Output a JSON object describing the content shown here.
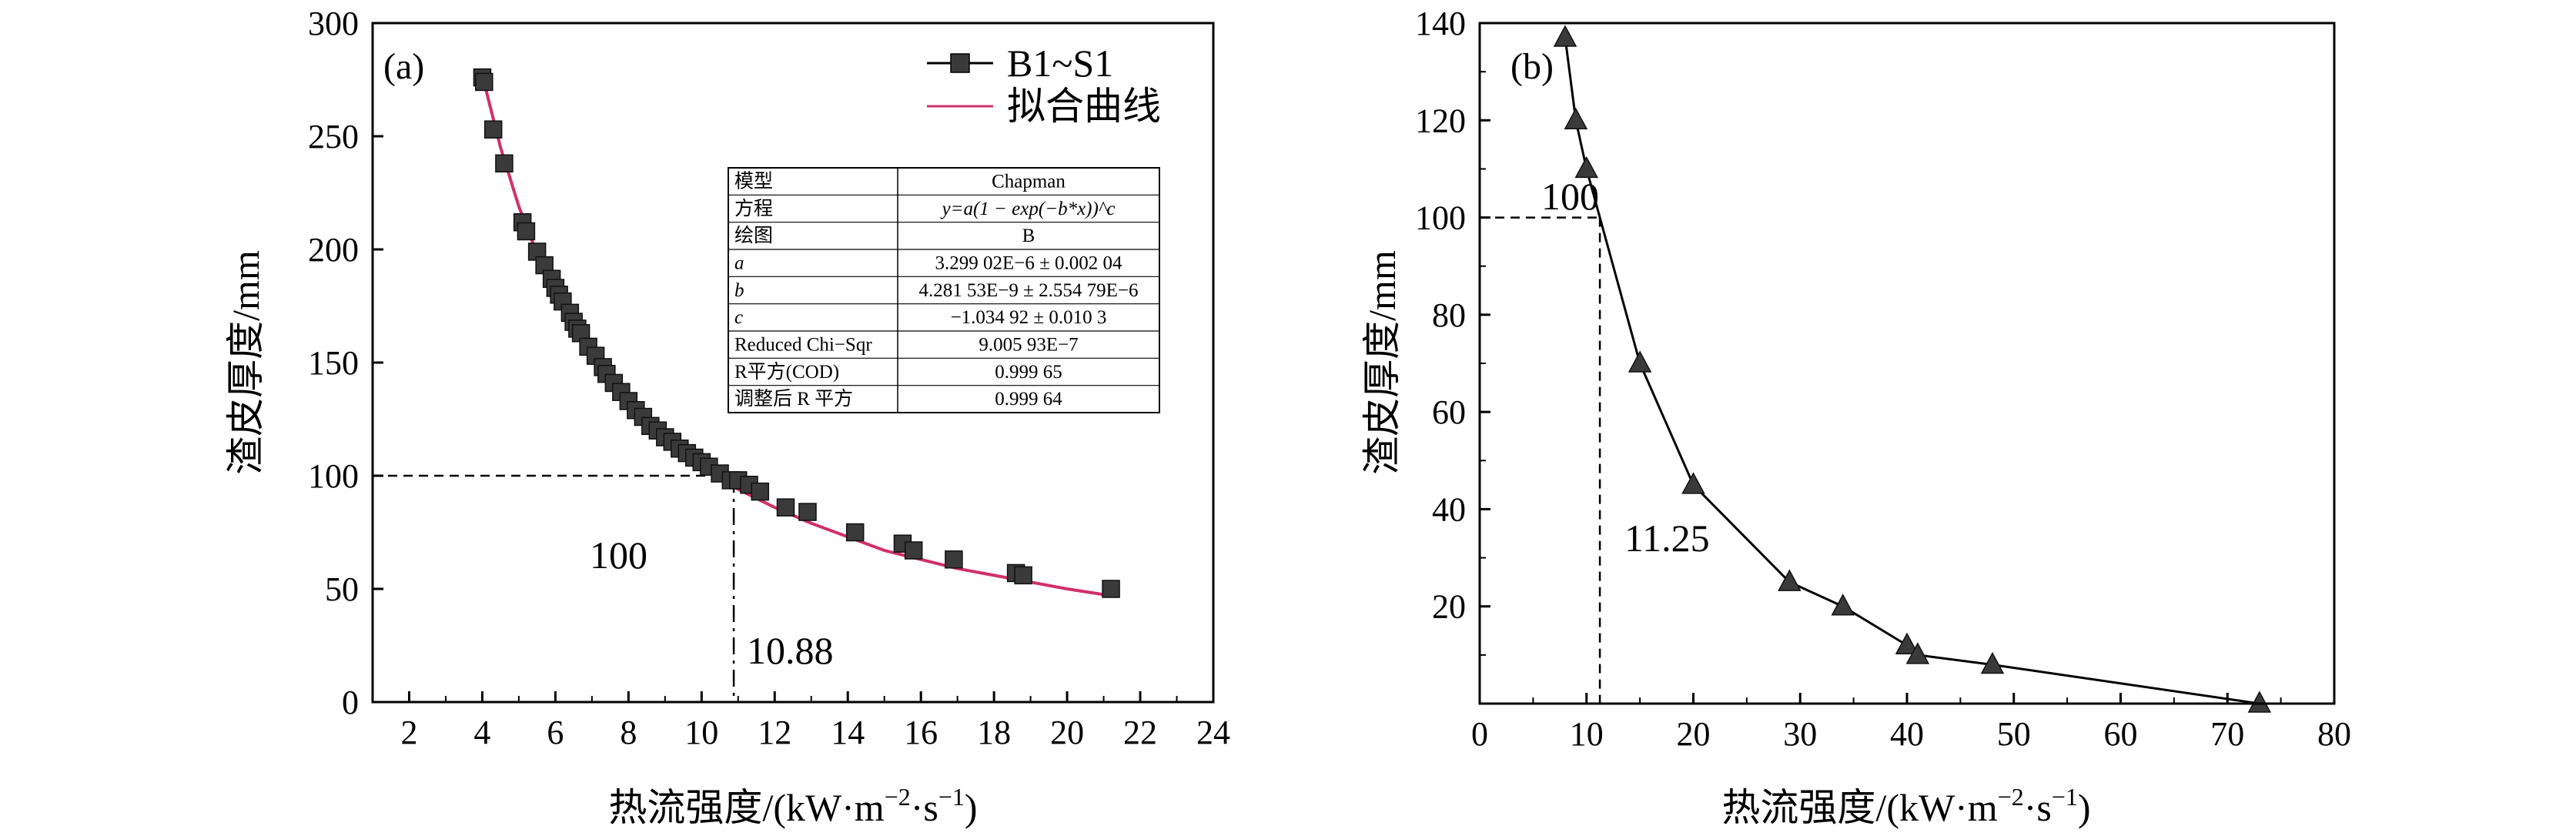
{
  "chart_data": [
    {
      "panel_label": "(a)",
      "type": "scatter",
      "xlabel": "热流强度/(kW·m⁻²·s⁻¹)",
      "ylabel": "渣皮厚度/mm",
      "xlim": [
        1,
        24
      ],
      "ylim": [
        0,
        300
      ],
      "xticks": [
        2,
        4,
        6,
        8,
        10,
        12,
        14,
        16,
        18,
        20,
        22,
        24
      ],
      "yticks": [
        0,
        50,
        100,
        150,
        200,
        250,
        300
      ],
      "grid": false,
      "legend_position": "top-right",
      "series": [
        {
          "name": "B1~S1",
          "marker": "square",
          "color": "#3a3a3a",
          "x": [
            4.0,
            4.05,
            4.3,
            4.6,
            5.1,
            5.2,
            5.5,
            5.7,
            5.9,
            6.0,
            6.1,
            6.2,
            6.4,
            6.5,
            6.6,
            6.7,
            6.9,
            7.1,
            7.3,
            7.4,
            7.6,
            7.8,
            8.0,
            8.2,
            8.4,
            8.6,
            8.8,
            9.0,
            9.2,
            9.4,
            9.6,
            9.8,
            10.0,
            10.2,
            10.5,
            10.8,
            11.0,
            11.3,
            11.6,
            12.3,
            12.9,
            14.2,
            15.5,
            15.8,
            16.9,
            18.6,
            18.8,
            21.2
          ],
          "y": [
            276,
            274,
            253,
            238,
            212,
            208,
            199,
            193,
            187,
            183,
            180,
            177,
            172,
            168,
            165,
            163,
            157,
            153,
            148,
            145,
            141,
            137,
            133,
            129,
            126,
            122,
            120,
            117,
            115,
            112,
            110,
            108,
            106,
            104,
            101,
            98,
            98,
            96,
            93,
            86,
            84,
            75,
            70,
            67,
            63,
            57,
            56,
            50
          ]
        },
        {
          "name": "拟合曲线",
          "style": "line",
          "color": "#d0306a",
          "x": [
            4.0,
            4.5,
            5.0,
            5.5,
            6.0,
            6.5,
            7.0,
            7.5,
            8.0,
            8.5,
            9.0,
            9.5,
            10.0,
            10.5,
            11.0,
            12.0,
            13.0,
            14.0,
            15.0,
            16.0,
            17.0,
            18.0,
            19.0,
            20.0,
            21.2
          ],
          "y": [
            277,
            245,
            219,
            198,
            180,
            166,
            153,
            142,
            133,
            124,
            117,
            110,
            104,
            99,
            94,
            86,
            79,
            73,
            67,
            63,
            59,
            56,
            53,
            50,
            47
          ]
        }
      ],
      "annotations": {
        "y_mark_value": 100,
        "y_mark_label": "100",
        "x_mark_value": 10.88,
        "x_mark_label": "10.88"
      },
      "fit_table": [
        [
          "模型",
          "Chapman"
        ],
        [
          "方程",
          "y=a(1 − exp(−b*x))^c"
        ],
        [
          "绘图",
          "B"
        ],
        [
          "a",
          "3.299 02E−6 ± 0.002 04"
        ],
        [
          "b",
          "4.281 53E−9 ± 2.554 79E−6"
        ],
        [
          "c",
          "−1.034 92 ± 0.010 3"
        ],
        [
          "Reduced Chi−Sqr",
          "9.005 93E−7"
        ],
        [
          "R平方(COD)",
          "0.999 65"
        ],
        [
          "调整后 R 平方",
          "0.999 64"
        ]
      ]
    },
    {
      "panel_label": "(b)",
      "type": "line",
      "xlabel": "热流强度/(kW·m⁻²·s⁻¹)",
      "ylabel": "渣皮厚度/mm",
      "xlim": [
        0,
        80
      ],
      "ylim": [
        0,
        140
      ],
      "xticks": [
        0,
        10,
        20,
        30,
        40,
        50,
        60,
        70,
        80
      ],
      "yticks": [
        20,
        40,
        60,
        80,
        100,
        120,
        140
      ],
      "grid": false,
      "series": [
        {
          "marker": "triangle",
          "color": "#3a3a3a",
          "x": [
            8,
            9,
            10,
            15,
            20,
            29,
            34,
            40,
            41,
            48,
            73
          ],
          "y": [
            137,
            120,
            110,
            70,
            45,
            25,
            20,
            12,
            10,
            8,
            0
          ]
        }
      ],
      "annotations": {
        "y_mark_value": 100,
        "y_mark_label": "100",
        "x_mark_value": 11.25,
        "x_mark_label": "11.25"
      }
    }
  ]
}
